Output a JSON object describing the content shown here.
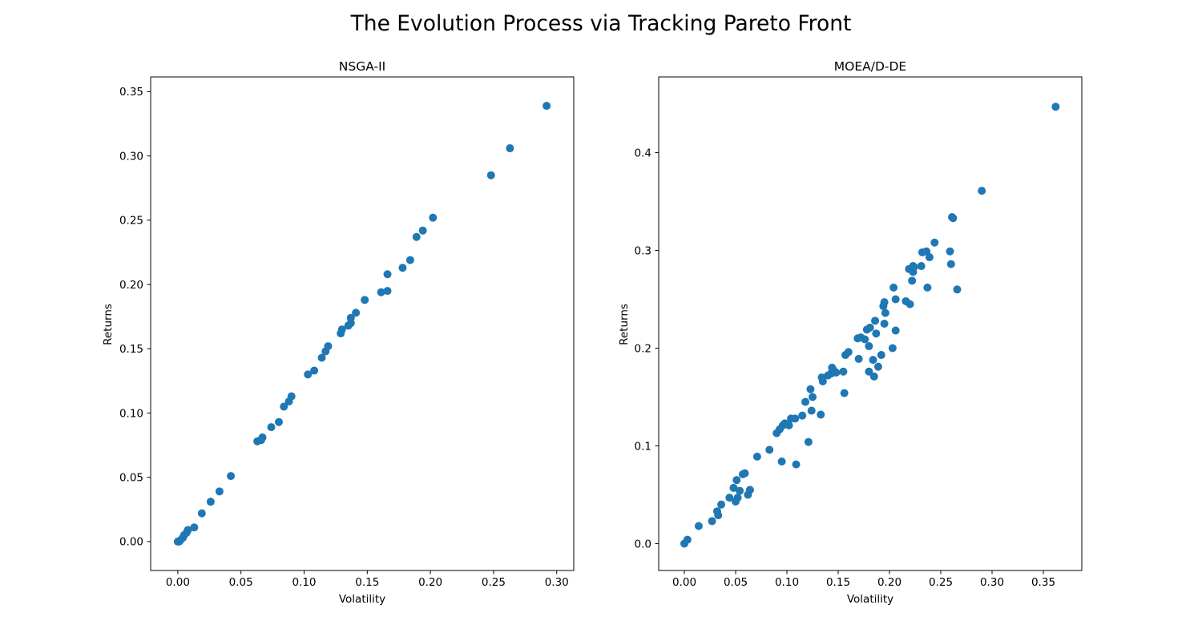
{
  "figure": {
    "suptitle": "The Evolution Process via Tracking Pareto Front",
    "marker_color": "#1f77b4"
  },
  "chart_data": [
    {
      "type": "scatter",
      "title": "NSGA-II",
      "xlabel": "Volatility",
      "ylabel": "Returns",
      "xlim": [
        -0.0215,
        0.3135
      ],
      "ylim": [
        -0.0225,
        0.3615
      ],
      "xticks": [
        0.0,
        0.05,
        0.1,
        0.15,
        0.2,
        0.25,
        0.3
      ],
      "xtick_labels": [
        "0.00",
        "0.05",
        "0.10",
        "0.15",
        "0.20",
        "0.25",
        "0.30"
      ],
      "yticks": [
        0.0,
        0.05,
        0.1,
        0.15,
        0.2,
        0.25,
        0.3,
        0.35
      ],
      "ytick_labels": [
        "0.00",
        "0.05",
        "0.10",
        "0.15",
        "0.20",
        "0.25",
        "0.30",
        "0.35"
      ],
      "grid": false,
      "series": [
        {
          "x": [
            0.0,
            0.001,
            0.002,
            0.004,
            0.005,
            0.007,
            0.008,
            0.013,
            0.019,
            0.026,
            0.033,
            0.042,
            0.063,
            0.066,
            0.067,
            0.074,
            0.08,
            0.084,
            0.088,
            0.09,
            0.103,
            0.108,
            0.114,
            0.117,
            0.119,
            0.129,
            0.13,
            0.135,
            0.137,
            0.137,
            0.141,
            0.148,
            0.161,
            0.166,
            0.166,
            0.178,
            0.184,
            0.189,
            0.194,
            0.202,
            0.248,
            0.263,
            0.292
          ],
          "y": [
            0.0,
            0.0,
            0.001,
            0.003,
            0.005,
            0.007,
            0.009,
            0.011,
            0.022,
            0.031,
            0.039,
            0.051,
            0.078,
            0.079,
            0.081,
            0.089,
            0.093,
            0.105,
            0.109,
            0.113,
            0.13,
            0.133,
            0.143,
            0.148,
            0.152,
            0.162,
            0.165,
            0.168,
            0.17,
            0.174,
            0.178,
            0.188,
            0.194,
            0.195,
            0.208,
            0.213,
            0.219,
            0.237,
            0.242,
            0.252,
            0.285,
            0.306,
            0.339
          ]
        }
      ]
    },
    {
      "type": "scatter",
      "title": "MOEA/D-DE",
      "xlabel": "Volatility",
      "ylabel": "Returns",
      "xlim": [
        -0.025,
        0.3875
      ],
      "ylim": [
        -0.0275,
        0.4775
      ],
      "xticks": [
        0.0,
        0.05,
        0.1,
        0.15,
        0.2,
        0.25,
        0.3,
        0.35
      ],
      "xtick_labels": [
        "0.00",
        "0.05",
        "0.10",
        "0.15",
        "0.20",
        "0.25",
        "0.30",
        "0.35"
      ],
      "yticks": [
        0.0,
        0.1,
        0.2,
        0.3,
        0.4
      ],
      "ytick_labels": [
        "0.0",
        "0.1",
        "0.2",
        "0.3",
        "0.4"
      ],
      "grid": false,
      "series": [
        {
          "x": [
            0.0,
            0.003,
            0.014,
            0.027,
            0.032,
            0.033,
            0.036,
            0.044,
            0.048,
            0.05,
            0.051,
            0.052,
            0.054,
            0.057,
            0.059,
            0.062,
            0.064,
            0.071,
            0.083,
            0.09,
            0.093,
            0.095,
            0.096,
            0.098,
            0.1,
            0.102,
            0.104,
            0.108,
            0.109,
            0.115,
            0.118,
            0.121,
            0.123,
            0.124,
            0.125,
            0.133,
            0.134,
            0.135,
            0.14,
            0.143,
            0.144,
            0.145,
            0.148,
            0.155,
            0.156,
            0.157,
            0.16,
            0.169,
            0.17,
            0.172,
            0.176,
            0.178,
            0.18,
            0.18,
            0.181,
            0.184,
            0.185,
            0.186,
            0.187,
            0.189,
            0.192,
            0.194,
            0.195,
            0.195,
            0.196,
            0.203,
            0.204,
            0.206,
            0.206,
            0.216,
            0.219,
            0.22,
            0.222,
            0.223,
            0.223,
            0.224,
            0.231,
            0.232,
            0.236,
            0.237,
            0.239,
            0.244,
            0.259,
            0.26,
            0.261,
            0.262,
            0.266,
            0.29,
            0.362
          ],
          "y": [
            0.0,
            0.004,
            0.018,
            0.023,
            0.033,
            0.029,
            0.04,
            0.047,
            0.057,
            0.043,
            0.065,
            0.047,
            0.054,
            0.071,
            0.072,
            0.05,
            0.055,
            0.089,
            0.096,
            0.113,
            0.117,
            0.084,
            0.121,
            0.123,
            0.122,
            0.121,
            0.128,
            0.128,
            0.081,
            0.131,
            0.145,
            0.104,
            0.158,
            0.136,
            0.15,
            0.132,
            0.17,
            0.166,
            0.172,
            0.174,
            0.18,
            0.178,
            0.175,
            0.176,
            0.154,
            0.193,
            0.196,
            0.21,
            0.189,
            0.211,
            0.209,
            0.219,
            0.202,
            0.176,
            0.221,
            0.188,
            0.171,
            0.228,
            0.215,
            0.181,
            0.193,
            0.243,
            0.247,
            0.225,
            0.236,
            0.2,
            0.262,
            0.218,
            0.25,
            0.248,
            0.281,
            0.245,
            0.269,
            0.284,
            0.278,
            0.283,
            0.284,
            0.298,
            0.299,
            0.262,
            0.293,
            0.308,
            0.299,
            0.286,
            0.334,
            0.333,
            0.26,
            0.361,
            0.447
          ]
        }
      ]
    }
  ]
}
